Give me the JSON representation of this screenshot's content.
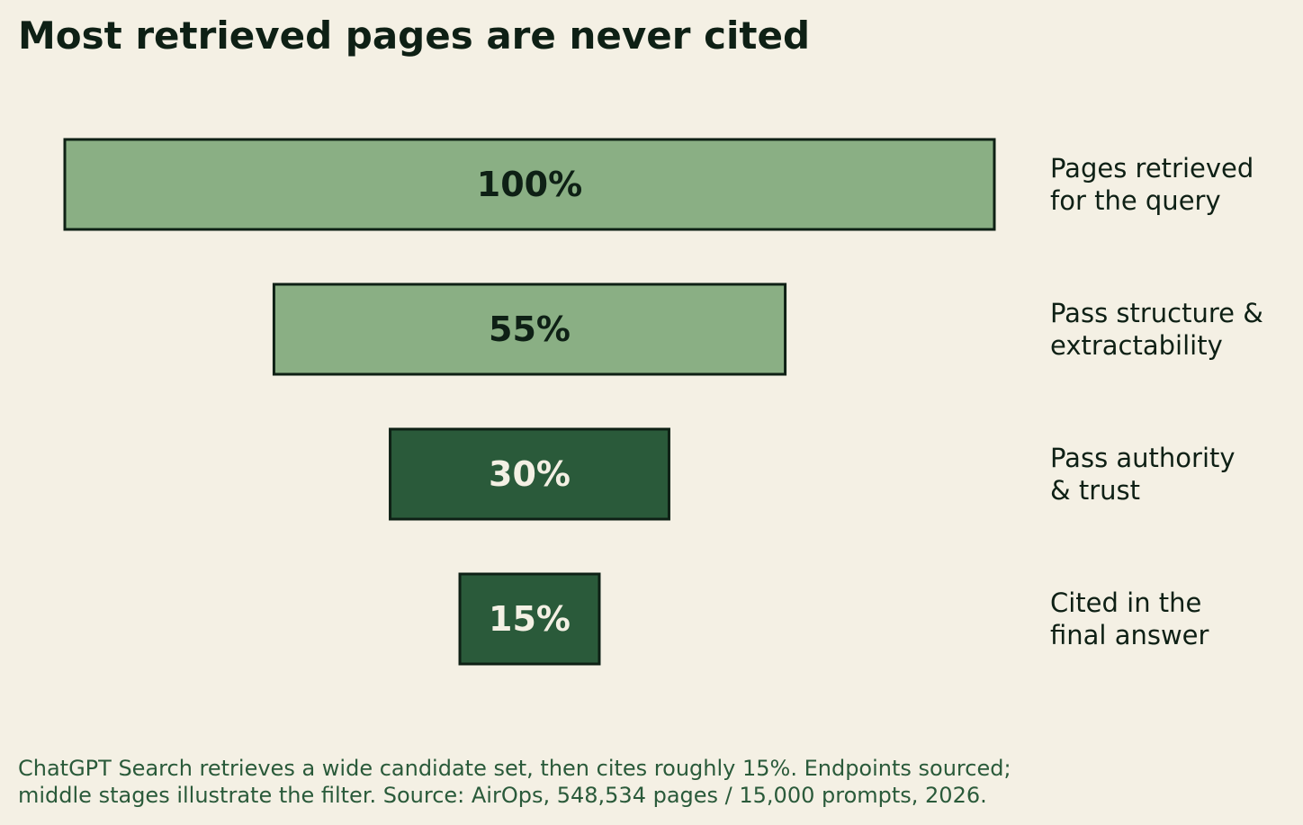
{
  "colors": {
    "background": "#f4f0e4",
    "light_bar": "#8aaf84",
    "dark_bar": "#2a5a3a",
    "outline": "#0e2015",
    "dark_text": "#0e2015",
    "light_text": "#f4f0e4",
    "caption_text": "#2a5a3a"
  },
  "chart_data": {
    "type": "bar",
    "orientation": "horizontal-centered-funnel",
    "title": "Most retrieved pages are never cited",
    "categories": [
      [
        "Pages retrieved",
        "for the query"
      ],
      [
        "Pass structure &",
        "extractability"
      ],
      [
        "Pass authority",
        "& trust"
      ],
      [
        "Cited in the",
        "final answer"
      ]
    ],
    "values": [
      100,
      55,
      30,
      15
    ],
    "value_labels": [
      "100%",
      "55%",
      "30%",
      "15%"
    ],
    "bar_colors": [
      "#8aaf84",
      "#8aaf84",
      "#2a5a3a",
      "#2a5a3a"
    ],
    "value_label_colors": [
      "#0e2015",
      "#0e2015",
      "#f4f0e4",
      "#f4f0e4"
    ],
    "xlim": [
      0,
      100
    ],
    "grid": false,
    "legend": "none"
  },
  "caption": {
    "line1": "ChatGPT Search retrieves a wide candidate set, then cites roughly 15%. Endpoints sourced;",
    "line2": "middle stages illustrate the filter. Source: AirOps, 548,534 pages / 15,000 prompts, 2026."
  }
}
